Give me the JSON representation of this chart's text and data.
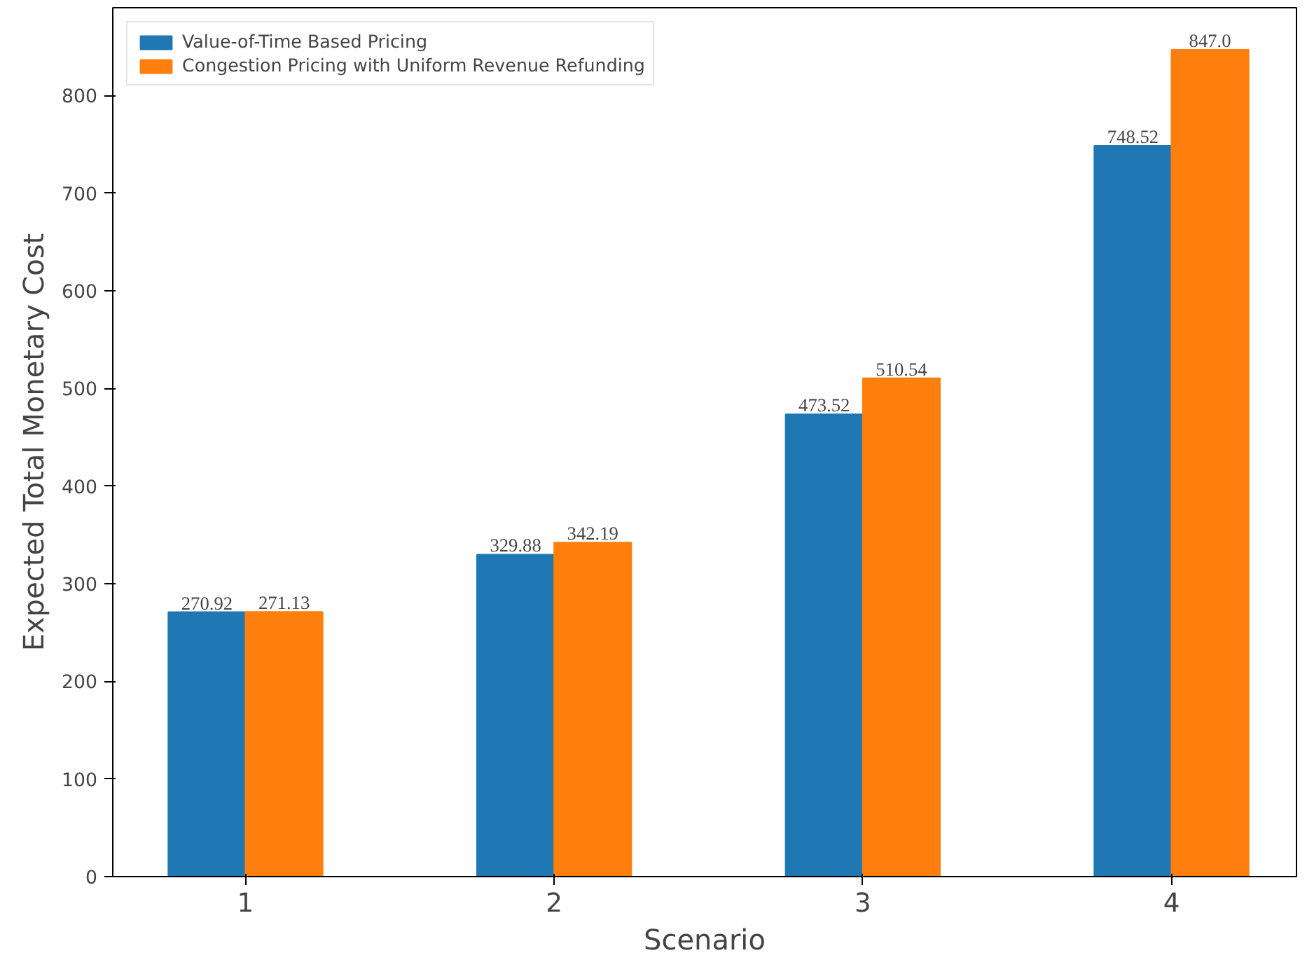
{
  "chart_data": {
    "type": "bar",
    "xlabel": "Scenario",
    "ylabel": "Expected Total Monetary Cost",
    "categories": [
      "1",
      "2",
      "3",
      "4"
    ],
    "series": [
      {
        "name": "Value-of-Time Based Pricing",
        "color": "#1f77b4",
        "values": [
          270.92,
          329.88,
          473.52,
          748.52
        ],
        "value_labels": [
          "270.92",
          "329.88",
          "473.52",
          "748.52"
        ]
      },
      {
        "name": "Congestion Pricing with Uniform Revenue Refunding",
        "color": "#ff7f0e",
        "values": [
          271.13,
          342.19,
          510.54,
          847.0
        ],
        "value_labels": [
          "271.13",
          "342.19",
          "510.54",
          "847.0"
        ]
      }
    ],
    "ylim": [
      0,
      890
    ],
    "yticks": [
      0,
      100,
      200,
      300,
      400,
      500,
      600,
      700,
      800
    ],
    "grid": false,
    "legend": "top left"
  }
}
